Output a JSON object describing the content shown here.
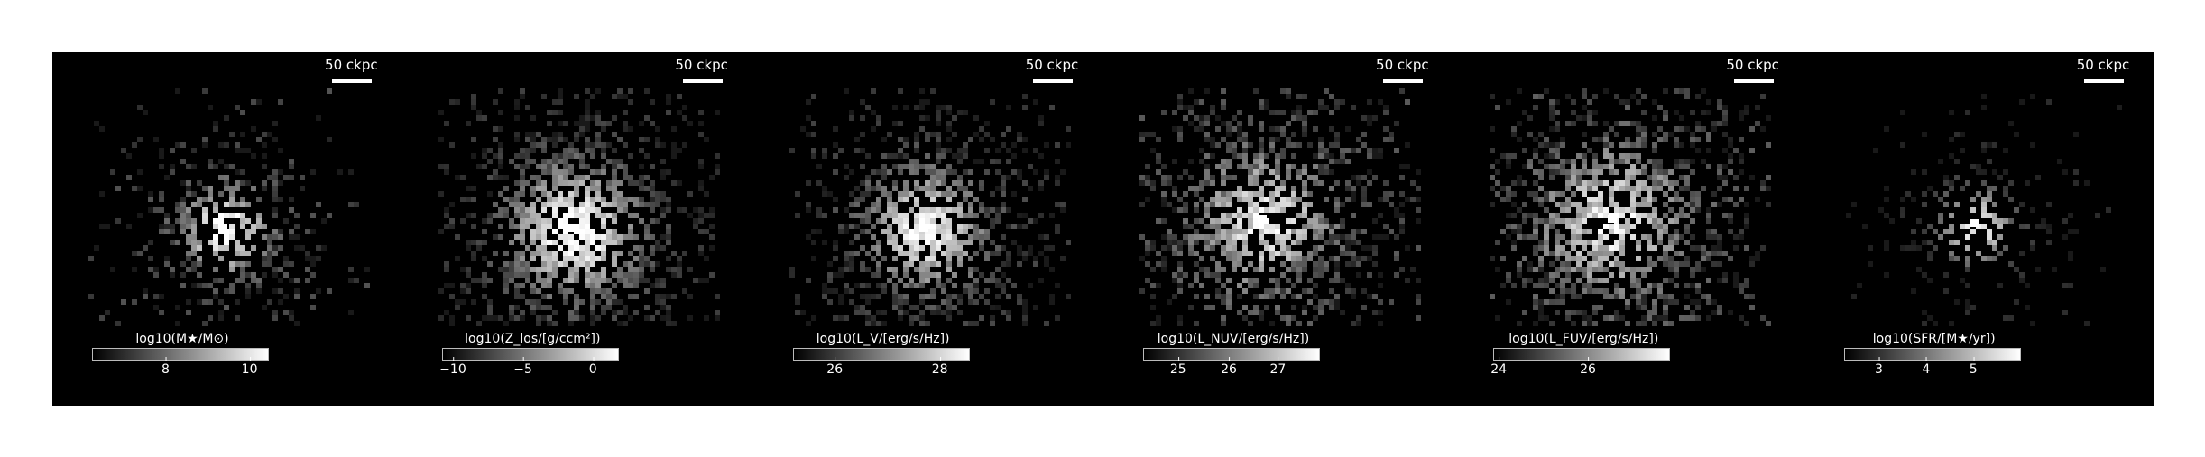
{
  "panels": [
    {
      "scale_label": "50 ckpc",
      "colorbar_label": "log10(M★/M⊙)",
      "ticks": [
        {
          "label": "8",
          "pos": 0.42
        },
        {
          "label": "10",
          "pos": 0.9
        }
      ],
      "intensity": "mass"
    },
    {
      "scale_label": "50 ckpc",
      "colorbar_label": "log10(Z_los/[g/ccm²])",
      "ticks": [
        {
          "label": "−10",
          "pos": 0.06
        },
        {
          "label": "−5",
          "pos": 0.46
        },
        {
          "label": "0",
          "pos": 0.86
        }
      ],
      "intensity": "metal"
    },
    {
      "scale_label": "50 ckpc",
      "colorbar_label": "log10(L_V/[erg/s/Hz])",
      "ticks": [
        {
          "label": "26",
          "pos": 0.24
        },
        {
          "label": "28",
          "pos": 0.84
        }
      ],
      "intensity": "v"
    },
    {
      "scale_label": "50 ckpc",
      "colorbar_label": "log10(L_NUV/[erg/s/Hz])",
      "ticks": [
        {
          "label": "25",
          "pos": 0.2
        },
        {
          "label": "26",
          "pos": 0.49
        },
        {
          "label": "27",
          "pos": 0.77
        }
      ],
      "intensity": "nuv"
    },
    {
      "scale_label": "50 ckpc",
      "colorbar_label": "log10(L_FUV/[erg/s/Hz])",
      "ticks": [
        {
          "label": "24",
          "pos": 0.03
        },
        {
          "label": "26",
          "pos": 0.54
        }
      ],
      "intensity": "fuv"
    },
    {
      "scale_label": "50 ckpc",
      "colorbar_label": "log10(SFR/[M★/yr])",
      "ticks": [
        {
          "label": "3",
          "pos": 0.2
        },
        {
          "label": "4",
          "pos": 0.47
        },
        {
          "label": "5",
          "pos": 0.74
        }
      ],
      "intensity": "sfr"
    }
  ]
}
